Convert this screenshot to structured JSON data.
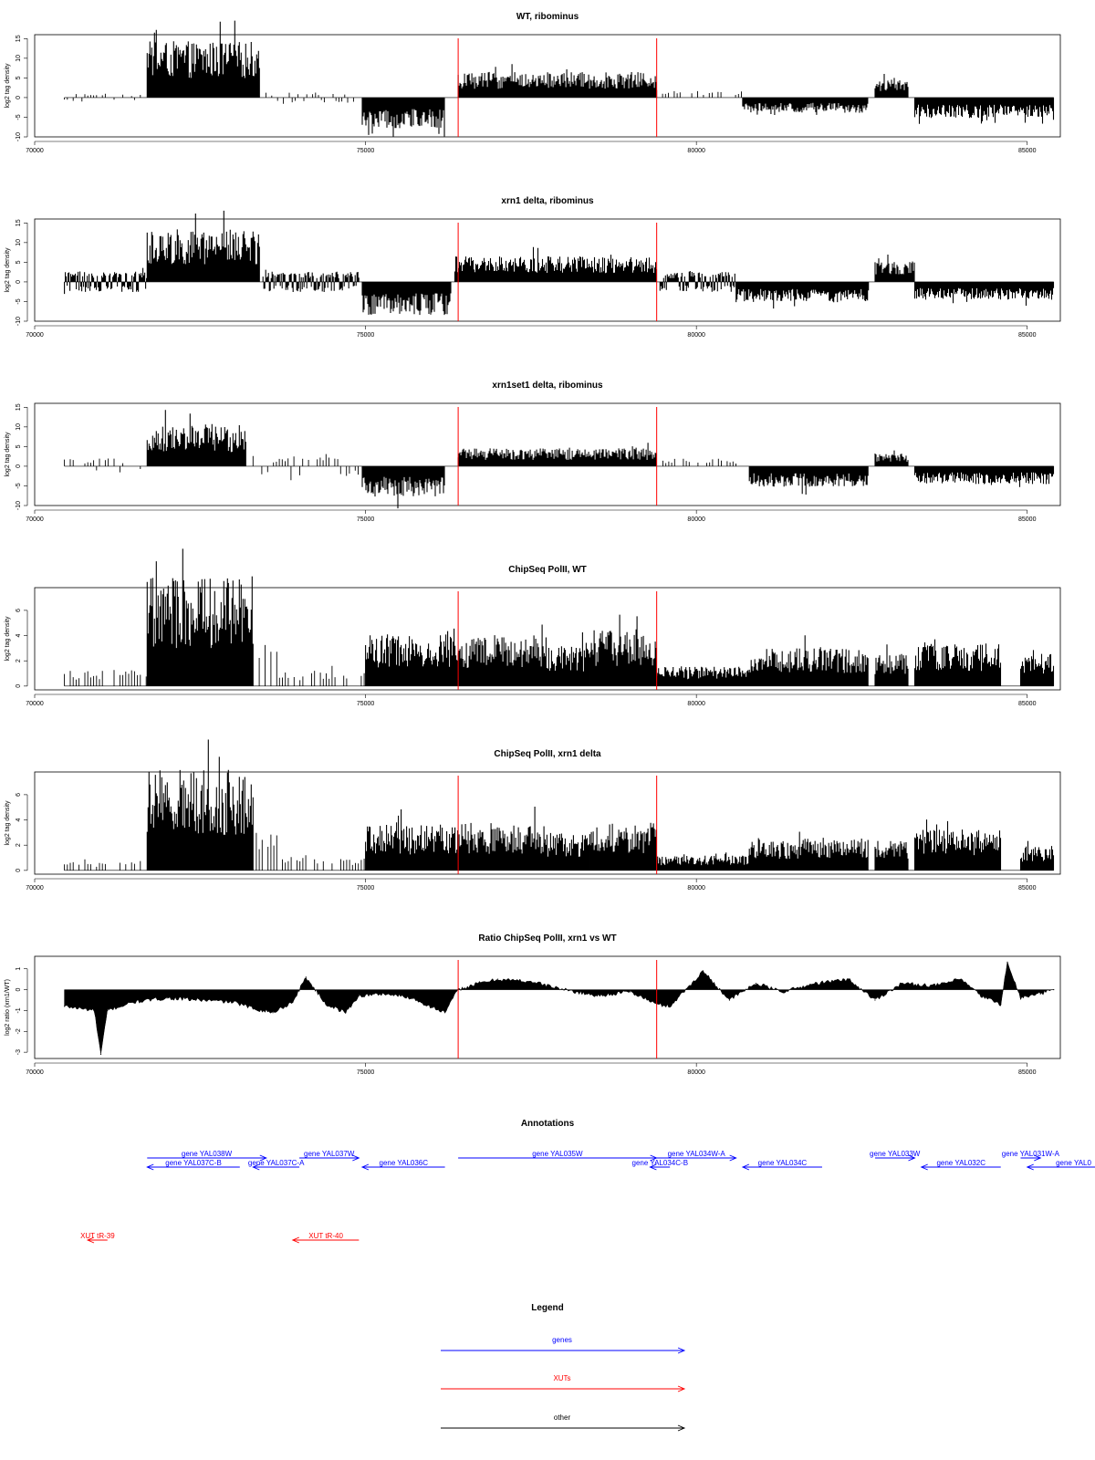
{
  "chart_data": [
    {
      "type": "bar",
      "title": "WT, ribominus",
      "ylabel": "log2 tag density",
      "xlim": [
        70000,
        85500
      ],
      "ylim": [
        -10,
        16
      ],
      "yticks": [
        -10,
        -5,
        0,
        5,
        10,
        15
      ],
      "xticks": [
        70000,
        75000,
        80000,
        85000
      ],
      "red_lines": [
        76400,
        79400
      ],
      "segments": [
        {
          "from": 70450,
          "to": 71600,
          "level": 0.8,
          "sparse": true,
          "neg": true
        },
        {
          "from": 71700,
          "to": 73400,
          "level": 11,
          "sparse": false
        },
        {
          "from": 73450,
          "to": 74900,
          "level": 1,
          "sparse": true,
          "neg": true
        },
        {
          "from": 74950,
          "to": 76200,
          "level": -6,
          "sparse": false
        },
        {
          "from": 76400,
          "to": 79400,
          "level": 5,
          "sparse": false
        },
        {
          "from": 79400,
          "to": 80700,
          "level": 1.5,
          "sparse": true
        },
        {
          "from": 80700,
          "to": 82600,
          "level": -3,
          "sparse": false
        },
        {
          "from": 82700,
          "to": 83200,
          "level": 3.5,
          "sparse": false
        },
        {
          "from": 83300,
          "to": 85400,
          "level": -4,
          "sparse": false
        }
      ]
    },
    {
      "type": "bar",
      "title": "xrn1 delta, ribominus",
      "ylabel": "log2 tag density",
      "xlim": [
        70000,
        85500
      ],
      "ylim": [
        -10,
        16
      ],
      "yticks": [
        -10,
        -5,
        0,
        5,
        10,
        15
      ],
      "xticks": [
        70000,
        75000,
        80000,
        85000
      ],
      "red_lines": [
        76400,
        79400
      ],
      "segments": [
        {
          "from": 70450,
          "to": 71700,
          "level": 2,
          "sparse": false,
          "neg": true
        },
        {
          "from": 71700,
          "to": 73400,
          "level": 10,
          "sparse": false
        },
        {
          "from": 73450,
          "to": 74900,
          "level": 2,
          "sparse": false,
          "neg": true
        },
        {
          "from": 74950,
          "to": 76300,
          "level": -6.5,
          "sparse": false
        },
        {
          "from": 76350,
          "to": 79400,
          "level": 5,
          "sparse": false
        },
        {
          "from": 79450,
          "to": 80600,
          "level": 2,
          "sparse": false,
          "neg": true
        },
        {
          "from": 80600,
          "to": 82600,
          "level": -4,
          "sparse": false
        },
        {
          "from": 82700,
          "to": 83300,
          "level": 4,
          "sparse": false
        },
        {
          "from": 83300,
          "to": 85400,
          "level": -3.5,
          "sparse": false
        }
      ]
    },
    {
      "type": "bar",
      "title": "xrn1set1 delta, ribominus",
      "ylabel": "log2 tag density",
      "xlim": [
        70000,
        85500
      ],
      "ylim": [
        -10,
        16
      ],
      "yticks": [
        -10,
        -5,
        0,
        5,
        10,
        15
      ],
      "xticks": [
        70000,
        75000,
        80000,
        85000
      ],
      "red_lines": [
        76400,
        79400
      ],
      "segments": [
        {
          "from": 70450,
          "to": 71600,
          "level": 1.5,
          "sparse": true,
          "neg": true
        },
        {
          "from": 71700,
          "to": 73200,
          "level": 8,
          "sparse": false
        },
        {
          "from": 73300,
          "to": 74900,
          "level": 2,
          "sparse": true,
          "neg": true
        },
        {
          "from": 74950,
          "to": 76200,
          "level": -6,
          "sparse": false
        },
        {
          "from": 76400,
          "to": 79400,
          "level": 3.5,
          "sparse": false
        },
        {
          "from": 79450,
          "to": 80700,
          "level": 1.5,
          "sparse": true
        },
        {
          "from": 80800,
          "to": 82600,
          "level": -4,
          "sparse": false
        },
        {
          "from": 82700,
          "to": 83200,
          "level": 2.5,
          "sparse": false
        },
        {
          "from": 83300,
          "to": 85400,
          "level": -3.5,
          "sparse": false
        }
      ]
    },
    {
      "type": "bar",
      "title": "ChipSeq PolII, WT",
      "ylabel": "log2 tag density",
      "xlim": [
        70000,
        85500
      ],
      "ylim": [
        -0.3,
        7.8
      ],
      "yticks": [
        0,
        2,
        4,
        6
      ],
      "xticks": [
        70000,
        75000,
        80000,
        85000
      ],
      "red_lines": [
        76400,
        79400
      ],
      "segments": [
        {
          "from": 70450,
          "to": 71700,
          "level": 1,
          "sparse": true
        },
        {
          "from": 71700,
          "to": 73300,
          "level": 6.7,
          "sparse": false
        },
        {
          "from": 73350,
          "to": 73700,
          "level": 3,
          "sparse": true
        },
        {
          "from": 73700,
          "to": 75000,
          "level": 1,
          "sparse": true
        },
        {
          "from": 75000,
          "to": 76400,
          "level": 3.2,
          "sparse": false
        },
        {
          "from": 76400,
          "to": 77700,
          "level": 3,
          "sparse": false
        },
        {
          "from": 77700,
          "to": 78400,
          "level": 2.5,
          "sparse": false
        },
        {
          "from": 78400,
          "to": 79400,
          "level": 3.5,
          "sparse": false
        },
        {
          "from": 79400,
          "to": 80800,
          "level": 1.2,
          "sparse": false
        },
        {
          "from": 80800,
          "to": 82600,
          "level": 2.3,
          "sparse": false
        },
        {
          "from": 82700,
          "to": 83200,
          "level": 2,
          "sparse": false
        },
        {
          "from": 83300,
          "to": 84600,
          "level": 2.6,
          "sparse": false
        },
        {
          "from": 84900,
          "to": 85400,
          "level": 2,
          "sparse": false
        }
      ]
    },
    {
      "type": "bar",
      "title": "ChipSeq PolII, xrn1 delta",
      "ylabel": "log2 tag density",
      "xlim": [
        70000,
        85500
      ],
      "ylim": [
        -0.3,
        7.8
      ],
      "yticks": [
        0,
        2,
        4,
        6
      ],
      "xticks": [
        70000,
        75000,
        80000,
        85000
      ],
      "red_lines": [
        76400,
        79400
      ],
      "segments": [
        {
          "from": 70450,
          "to": 71600,
          "level": 0.6,
          "sparse": true
        },
        {
          "from": 71700,
          "to": 73300,
          "level": 6.2,
          "sparse": false
        },
        {
          "from": 73350,
          "to": 73700,
          "level": 2.5,
          "sparse": true
        },
        {
          "from": 73700,
          "to": 75000,
          "level": 0.9,
          "sparse": true
        },
        {
          "from": 75000,
          "to": 76400,
          "level": 2.8,
          "sparse": false
        },
        {
          "from": 76400,
          "to": 77700,
          "level": 2.9,
          "sparse": false
        },
        {
          "from": 77700,
          "to": 78400,
          "level": 2.3,
          "sparse": false
        },
        {
          "from": 78400,
          "to": 79400,
          "level": 2.9,
          "sparse": false
        },
        {
          "from": 79400,
          "to": 80800,
          "level": 0.9,
          "sparse": false
        },
        {
          "from": 80800,
          "to": 82600,
          "level": 2,
          "sparse": false
        },
        {
          "from": 82700,
          "to": 83200,
          "level": 1.8,
          "sparse": false
        },
        {
          "from": 83300,
          "to": 84600,
          "level": 2.5,
          "sparse": false
        },
        {
          "from": 84900,
          "to": 85400,
          "level": 1.5,
          "sparse": false
        }
      ]
    },
    {
      "type": "area",
      "title": "Ratio ChipSeq PolII, xrn1 vs WT",
      "ylabel": "log2 ratio (xrn1/WT)",
      "xlim": [
        70000,
        85500
      ],
      "ylim": [
        -3.3,
        1.6
      ],
      "yticks": [
        -3,
        -2,
        -1,
        0,
        1
      ],
      "xticks": [
        70000,
        75000,
        80000,
        85000
      ],
      "red_lines": [
        76400,
        79400
      ],
      "x": [
        70450,
        70900,
        71000,
        71100,
        71500,
        72000,
        72500,
        73000,
        73300,
        73600,
        73900,
        74100,
        74400,
        74700,
        74900,
        75300,
        75700,
        75900,
        76200,
        76400,
        76700,
        77000,
        77500,
        78000,
        78500,
        79000,
        79400,
        79600,
        79900,
        80100,
        80500,
        80900,
        81300,
        81800,
        82300,
        82700,
        83100,
        83600,
        84000,
        84300,
        84600,
        84700,
        84900,
        85200,
        85400
      ],
      "values": [
        -0.8,
        -1.0,
        -3.1,
        -1.0,
        -0.6,
        -0.4,
        -0.5,
        -0.6,
        -0.9,
        -1.1,
        -0.6,
        0.6,
        -0.7,
        -1.1,
        -0.3,
        -0.2,
        -0.4,
        -0.7,
        -1.1,
        0.0,
        0.3,
        0.5,
        0.4,
        0.0,
        -0.3,
        -0.1,
        -0.7,
        -0.8,
        0.2,
        0.9,
        -0.5,
        0.3,
        -0.1,
        0.3,
        0.5,
        -0.5,
        0.3,
        0.2,
        0.5,
        -0.3,
        -0.7,
        1.3,
        -0.4,
        -0.2,
        0.0
      ]
    }
  ],
  "annotations": {
    "title": "Annotations",
    "items": [
      {
        "label": "gene YAL038W",
        "from": 71700,
        "to": 73500,
        "row": 0,
        "color": "blue",
        "dir": "right"
      },
      {
        "label": "gene YAL037C-B",
        "from": 73100,
        "to": 71700,
        "row": 1,
        "color": "blue",
        "dir": "left"
      },
      {
        "label": "gene YAL037C-A",
        "from": 74000,
        "to": 73300,
        "row": 1,
        "color": "blue",
        "dir": "left"
      },
      {
        "label": "gene YAL037W",
        "from": 74000,
        "to": 74900,
        "row": 0,
        "color": "blue",
        "dir": "right"
      },
      {
        "label": "gene YAL036C",
        "from": 76200,
        "to": 74950,
        "row": 1,
        "color": "blue",
        "dir": "left"
      },
      {
        "label": "gene YAL035W",
        "from": 76400,
        "to": 79400,
        "row": 0,
        "color": "blue",
        "dir": "right"
      },
      {
        "label": "gene YAL034W-A",
        "from": 79400,
        "to": 80600,
        "row": 0,
        "color": "blue",
        "dir": "right"
      },
      {
        "label": "gene YAL034C-B",
        "from": 79600,
        "to": 79300,
        "row": 1,
        "color": "blue",
        "dir": "left"
      },
      {
        "label": "gene YAL034C",
        "from": 81900,
        "to": 80700,
        "row": 1,
        "color": "blue",
        "dir": "left"
      },
      {
        "label": "gene YAL033W",
        "from": 82700,
        "to": 83300,
        "row": 0,
        "color": "blue",
        "dir": "right"
      },
      {
        "label": "gene YAL032C",
        "from": 84600,
        "to": 83400,
        "row": 1,
        "color": "blue",
        "dir": "left"
      },
      {
        "label": "gene YAL031W-A",
        "from": 84900,
        "to": 85200,
        "row": 0,
        "color": "blue",
        "dir": "right"
      },
      {
        "label": "gene YAL0",
        "from": 86400,
        "to": 85000,
        "row": 1,
        "color": "blue",
        "dir": "left"
      },
      {
        "label": "XUT tR-39",
        "from": 71100,
        "to": 70800,
        "row": 2,
        "color": "red",
        "dir": "left"
      },
      {
        "label": "XUT tR-40",
        "from": 74900,
        "to": 73900,
        "row": 2,
        "color": "red",
        "dir": "left"
      }
    ]
  },
  "legend": {
    "title": "Legend",
    "items": [
      {
        "label": "genes",
        "color": "blue"
      },
      {
        "label": "XUTs",
        "color": "red"
      },
      {
        "label": "other",
        "color": "black"
      }
    ]
  },
  "colors": {
    "blue": "#0000ff",
    "red": "#ff0000",
    "black": "#000000"
  }
}
